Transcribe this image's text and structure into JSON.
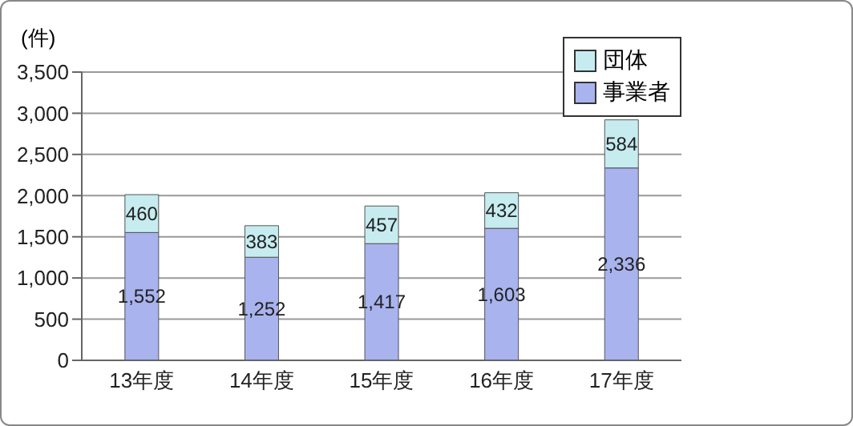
{
  "chart_data": {
    "type": "bar",
    "ylabel": "(件)",
    "categories": [
      "13年度",
      "14年度",
      "15年度",
      "16年度",
      "17年度"
    ],
    "stacked": true,
    "series": [
      {
        "name": "事業者",
        "color": "#a9b3ee",
        "values": [
          1552,
          1252,
          1417,
          1603,
          2336
        ],
        "value_labels": [
          "1,552",
          "1,252",
          "1,417",
          "1,603",
          "2,336"
        ]
      },
      {
        "name": "団体",
        "color": "#c6ecf0",
        "values": [
          460,
          383,
          457,
          432,
          584
        ]
      }
    ],
    "ylim": [
      0,
      3500
    ],
    "yticks": [
      0,
      500,
      {
        "value": 1000,
        "label": "1,000"
      },
      {
        "value": 1500,
        "label": "1,500"
      },
      {
        "value": 2000,
        "label": "2,000"
      },
      {
        "value": 2500,
        "label": "2,500"
      },
      {
        "value": 3000,
        "label": "3,000"
      },
      {
        "value": 3500,
        "label": "3,500"
      }
    ],
    "grid": "y",
    "legend": "top right",
    "data_labels": true
  }
}
